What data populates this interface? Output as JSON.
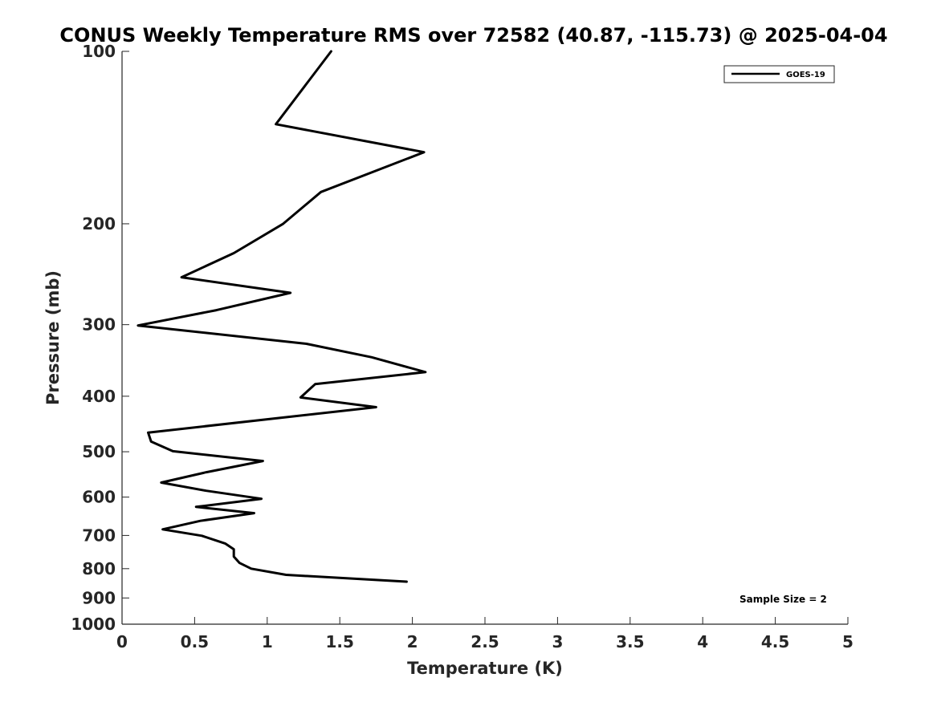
{
  "chart_data": {
    "type": "line",
    "title": "CONUS Weekly Temperature RMS over 72582 (40.87, -115.73) @ 2025-04-04",
    "xlabel": "Temperature (K)",
    "ylabel": "Pressure (mb)",
    "xlim": [
      0,
      5
    ],
    "ylim": [
      100,
      1000
    ],
    "y_scale": "log",
    "y_reversed": true,
    "x_ticks": [
      0,
      0.5,
      1,
      1.5,
      2,
      2.5,
      3,
      3.5,
      4,
      4.5,
      5
    ],
    "x_tick_labels": [
      "0",
      "0.5",
      "1",
      "1.5",
      "2",
      "2.5",
      "3",
      "3.5",
      "4",
      "4.5",
      "5"
    ],
    "y_ticks": [
      100,
      200,
      300,
      400,
      500,
      600,
      700,
      800,
      900,
      1000
    ],
    "y_tick_labels": [
      "100",
      "200",
      "300",
      "400",
      "500",
      "600",
      "700",
      "800",
      "900",
      "1000"
    ],
    "grid": false,
    "legend_position": "top-right",
    "series": [
      {
        "name": "GOES-19",
        "color": "#000000",
        "points": [
          {
            "x": 1.44,
            "y": 100
          },
          {
            "x": 1.06,
            "y": 134
          },
          {
            "x": 2.08,
            "y": 150
          },
          {
            "x": 1.37,
            "y": 176
          },
          {
            "x": 1.11,
            "y": 200
          },
          {
            "x": 0.77,
            "y": 225
          },
          {
            "x": 0.41,
            "y": 248
          },
          {
            "x": 1.16,
            "y": 264
          },
          {
            "x": 0.65,
            "y": 283
          },
          {
            "x": 0.11,
            "y": 301
          },
          {
            "x": 1.27,
            "y": 324
          },
          {
            "x": 1.72,
            "y": 342
          },
          {
            "x": 2.09,
            "y": 363
          },
          {
            "x": 1.33,
            "y": 381
          },
          {
            "x": 1.23,
            "y": 402
          },
          {
            "x": 1.75,
            "y": 418
          },
          {
            "x": 0.18,
            "y": 463
          },
          {
            "x": 0.2,
            "y": 480
          },
          {
            "x": 0.35,
            "y": 499
          },
          {
            "x": 0.97,
            "y": 519
          },
          {
            "x": 0.58,
            "y": 543
          },
          {
            "x": 0.27,
            "y": 566
          },
          {
            "x": 0.58,
            "y": 585
          },
          {
            "x": 0.96,
            "y": 604
          },
          {
            "x": 0.51,
            "y": 624
          },
          {
            "x": 0.91,
            "y": 640
          },
          {
            "x": 0.54,
            "y": 660
          },
          {
            "x": 0.28,
            "y": 683
          },
          {
            "x": 0.55,
            "y": 701
          },
          {
            "x": 0.71,
            "y": 723
          },
          {
            "x": 0.77,
            "y": 740
          },
          {
            "x": 0.77,
            "y": 762
          },
          {
            "x": 0.81,
            "y": 782
          },
          {
            "x": 0.89,
            "y": 800
          },
          {
            "x": 1.13,
            "y": 820
          },
          {
            "x": 1.96,
            "y": 843
          }
        ]
      }
    ],
    "annotations": [
      {
        "text": "Sample Size = 2",
        "position": "bottom-right"
      }
    ]
  }
}
